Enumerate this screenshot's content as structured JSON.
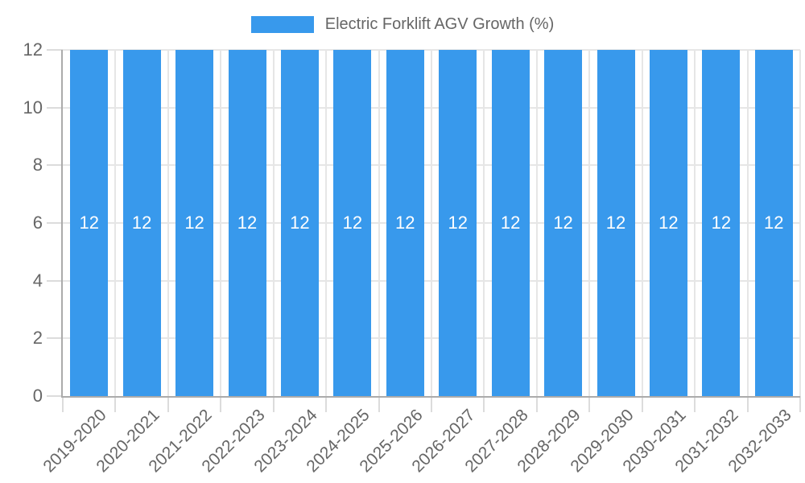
{
  "legend": {
    "label": "Electric Forklift AGV Growth (%)"
  },
  "colors": {
    "bar": "#3899ec",
    "grid": "#e6e6e6",
    "tick": "#dcdcdc",
    "axis": "#ababab",
    "text": "#666666",
    "value_label": "#ffffff",
    "background": "#ffffff"
  },
  "chart_data": {
    "type": "bar",
    "title": "Electric Forklift AGV Growth (%)",
    "categories": [
      "2019-2020",
      "2020-2021",
      "2021-2022",
      "2022-2023",
      "2023-2024",
      "2024-2025",
      "2025-2026",
      "2026-2027",
      "2027-2028",
      "2028-2029",
      "2029-2030",
      "2030-2031",
      "2031-2032",
      "2032-2033"
    ],
    "values": [
      12,
      12,
      12,
      12,
      12,
      12,
      12,
      12,
      12,
      12,
      12,
      12,
      12,
      12
    ],
    "xlabel": "",
    "ylabel": "",
    "ylim": [
      0,
      12
    ],
    "yticks": [
      0,
      2,
      4,
      6,
      8,
      10,
      12
    ],
    "grid": true,
    "legend_position": "top",
    "bar_labels_shown": true
  }
}
